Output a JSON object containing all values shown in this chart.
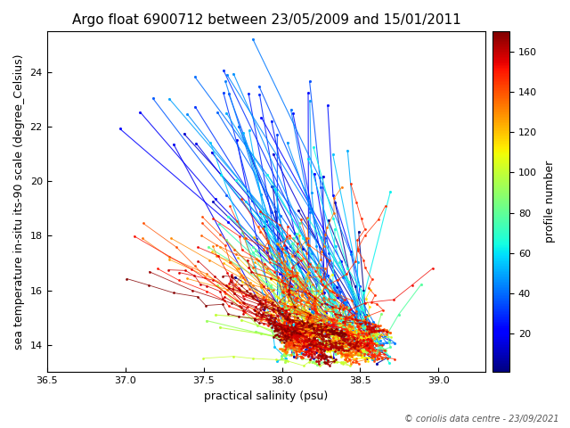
{
  "title": "Argo float 6900712 between 23/05/2009 and 15/01/2011",
  "xlabel": "practical salinity (psu)",
  "ylabel": "sea temperature in-situ its-90 scale (degree_Celsius)",
  "colorbar_label": "profile number",
  "copyright": "© coriolis data centre - 23/09/2021",
  "xlim": [
    36.5,
    39.3
  ],
  "ylim": [
    13.0,
    25.5
  ],
  "xticks": [
    36.5,
    37.0,
    37.5,
    38.0,
    38.5,
    39.0
  ],
  "yticks": [
    14,
    16,
    18,
    20,
    22,
    24
  ],
  "cmap": "jet",
  "vmin": 1,
  "vmax": 170,
  "n_profiles": 170,
  "seed": 7
}
